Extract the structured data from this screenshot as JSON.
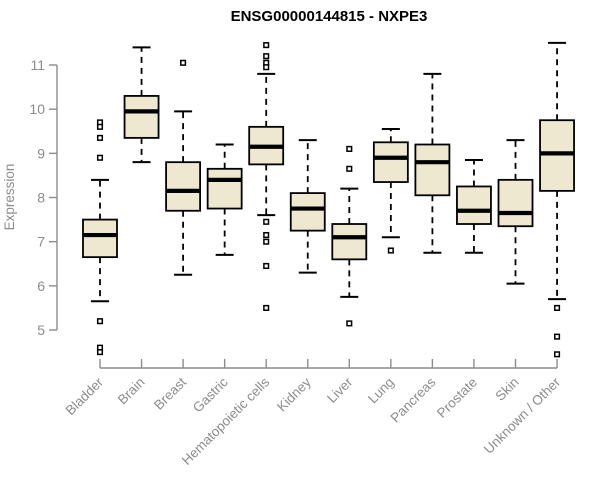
{
  "chart_data": {
    "type": "boxplot",
    "title": "ENSG00000144815 - NXPE3",
    "ylabel": "Expression",
    "xlabel": "",
    "y_ticks": [
      5,
      6,
      7,
      8,
      9,
      10,
      11
    ],
    "ylim": [
      4.2,
      11.7
    ],
    "grid": false,
    "legend": "none",
    "categories": [
      "Bladder",
      "Brain",
      "Breast",
      "Gastric",
      "Hematopoietic cells",
      "Kidney",
      "Liver",
      "Lung",
      "Pancreas",
      "Prostate",
      "Skin",
      "Unknown / Other"
    ],
    "boxes": [
      {
        "category": "Bladder",
        "whisker_low": 5.65,
        "q1": 6.65,
        "median": 7.15,
        "q3": 7.5,
        "whisker_high": 8.4,
        "outliers": [
          9.7,
          9.6,
          9.35,
          8.9,
          5.2,
          4.6,
          4.5
        ]
      },
      {
        "category": "Brain",
        "whisker_low": 8.8,
        "q1": 9.35,
        "median": 9.95,
        "q3": 10.3,
        "whisker_high": 11.4,
        "outliers": []
      },
      {
        "category": "Breast",
        "whisker_low": 6.25,
        "q1": 7.7,
        "median": 8.15,
        "q3": 8.8,
        "whisker_high": 9.95,
        "outliers": [
          11.05
        ]
      },
      {
        "category": "Gastric",
        "whisker_low": 6.7,
        "q1": 7.75,
        "median": 8.4,
        "q3": 8.65,
        "whisker_high": 9.2,
        "outliers": []
      },
      {
        "category": "Hematopoietic cells",
        "whisker_low": 7.6,
        "q1": 8.75,
        "median": 9.15,
        "q3": 9.6,
        "whisker_high": 10.8,
        "outliers": [
          11.45,
          11.2,
          11.05,
          10.95,
          7.45,
          7.15,
          7.0,
          6.45,
          5.5
        ]
      },
      {
        "category": "Kidney",
        "whisker_low": 6.3,
        "q1": 7.25,
        "median": 7.75,
        "q3": 8.1,
        "whisker_high": 9.3,
        "outliers": []
      },
      {
        "category": "Liver",
        "whisker_low": 5.75,
        "q1": 6.6,
        "median": 7.1,
        "q3": 7.4,
        "whisker_high": 8.2,
        "outliers": [
          9.1,
          8.65,
          5.15
        ]
      },
      {
        "category": "Lung",
        "whisker_low": 7.1,
        "q1": 8.35,
        "median": 8.9,
        "q3": 9.25,
        "whisker_high": 9.55,
        "outliers": [
          6.8
        ]
      },
      {
        "category": "Pancreas",
        "whisker_low": 6.75,
        "q1": 8.05,
        "median": 8.8,
        "q3": 9.2,
        "whisker_high": 10.8,
        "outliers": []
      },
      {
        "category": "Prostate",
        "whisker_low": 6.75,
        "q1": 7.4,
        "median": 7.7,
        "q3": 8.25,
        "whisker_high": 8.85,
        "outliers": []
      },
      {
        "category": "Skin",
        "whisker_low": 6.05,
        "q1": 7.35,
        "median": 7.65,
        "q3": 8.4,
        "whisker_high": 9.3,
        "outliers": []
      },
      {
        "category": "Unknown / Other",
        "whisker_low": 5.7,
        "q1": 8.15,
        "median": 9.0,
        "q3": 9.75,
        "whisker_high": 11.5,
        "outliers": [
          5.5,
          4.85,
          4.45
        ]
      }
    ],
    "style": {
      "box_fill": "#EDE8CF",
      "box_stroke": "#000000",
      "median_color": "#000000",
      "whisker_color": "#000000",
      "outlier_stroke": "#000000",
      "axis_color": "#8C8C8C",
      "tick_label_color": "#8C8C8C",
      "title_color": "#000000",
      "background": "#FFFFFF"
    }
  }
}
